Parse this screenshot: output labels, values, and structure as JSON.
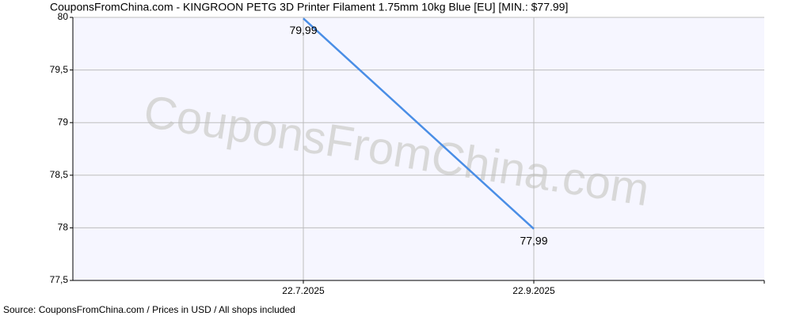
{
  "chart_data": {
    "type": "line",
    "title": "CouponsFromChina.com - KINGROON PETG 3D Printer Filament 1.75mm 10kg Blue [EU] [MIN.: $77.99]",
    "watermark": "CouponsFromChina.com",
    "source": "Source: CouponsFromChina.com / Prices in USD / All shops included",
    "categories": [
      "22.7.2025",
      "22.9.2025"
    ],
    "values": [
      79.99,
      77.99
    ],
    "value_labels": [
      "79,99",
      "77,99"
    ],
    "color": "#4a8ee6",
    "ylim": [
      77.5,
      80
    ],
    "yticks": [
      {
        "value": 77.5,
        "label": "77,5"
      },
      78,
      {
        "value": 78.5,
        "label": "78,5"
      },
      79,
      {
        "value": 79.5,
        "label": "79,5"
      },
      80
    ],
    "grid": true
  }
}
